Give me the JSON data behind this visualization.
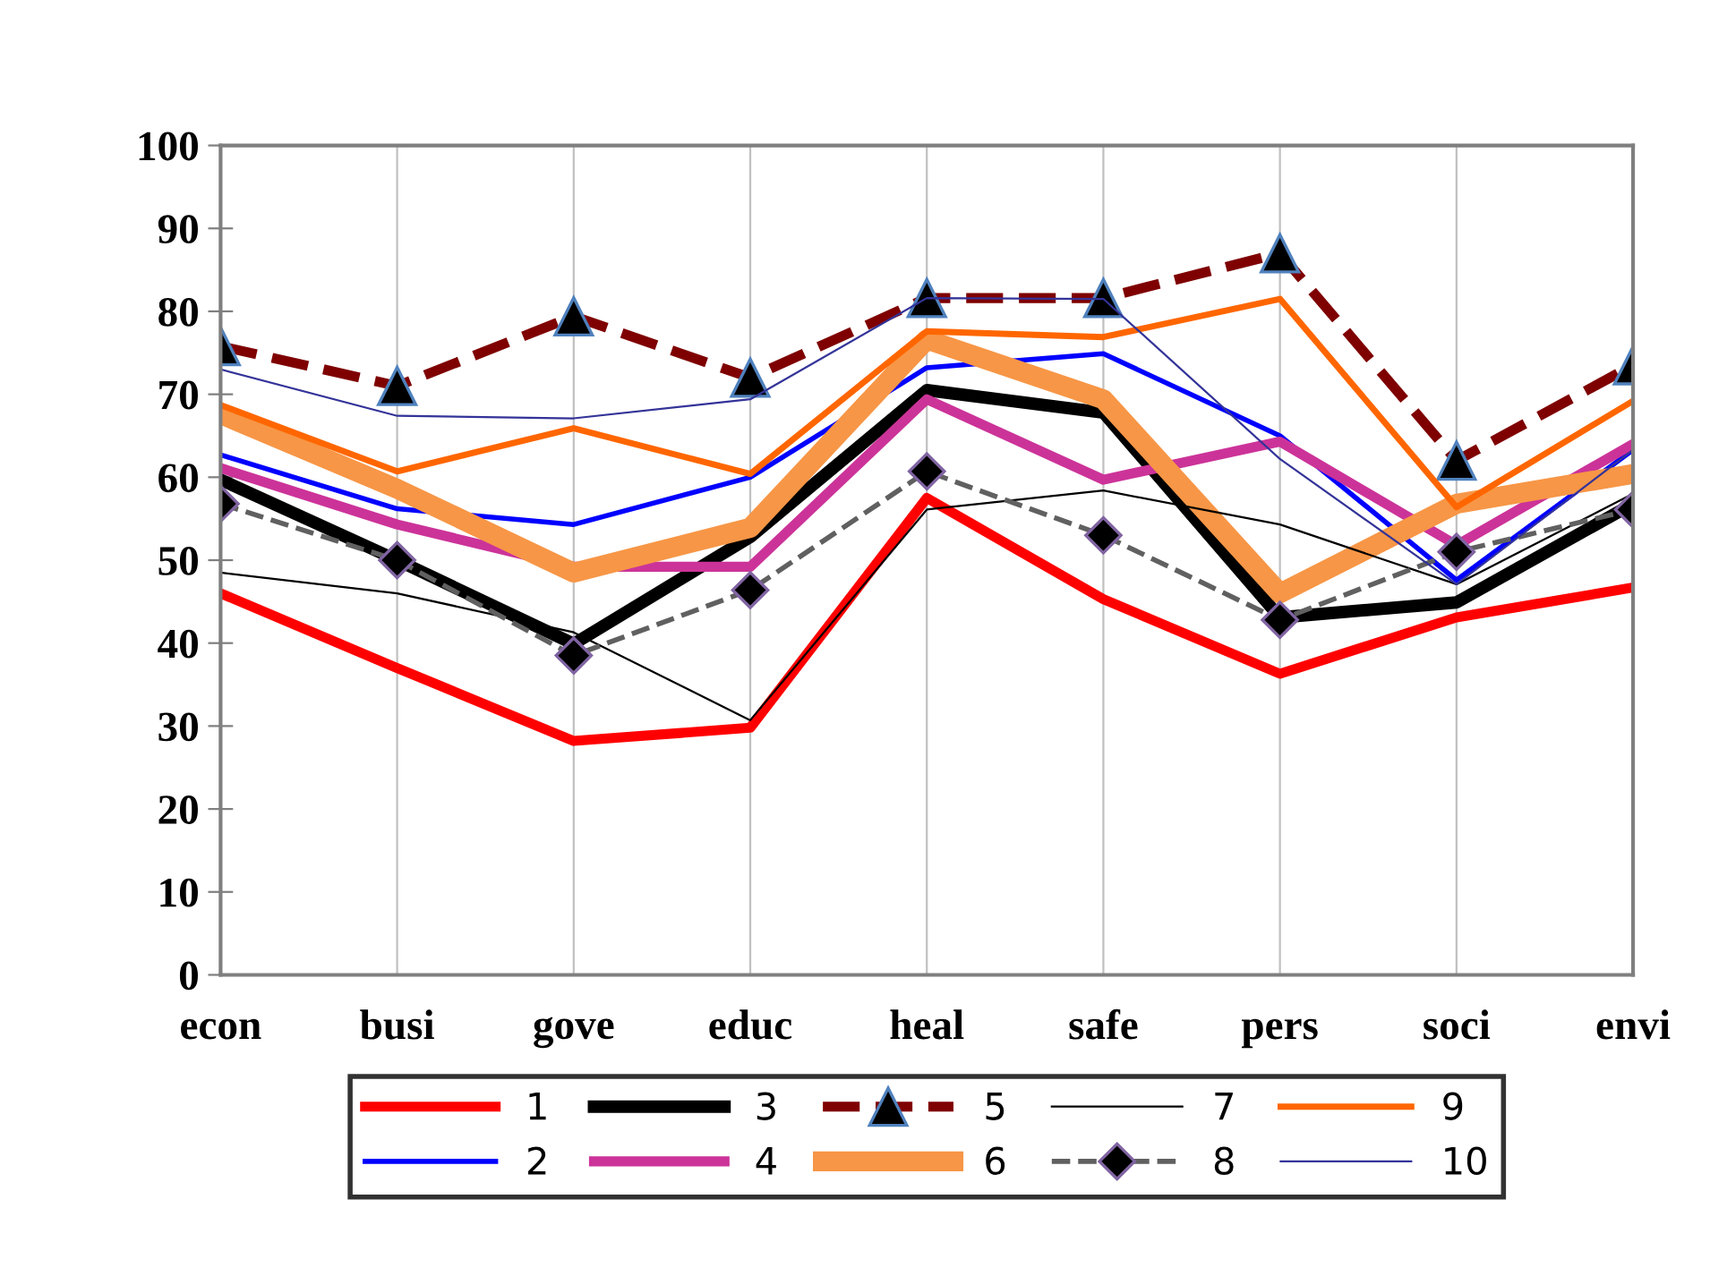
{
  "chart_data": {
    "type": "line",
    "categories": [
      "econ",
      "busi",
      "gove",
      "educ",
      "heal",
      "safe",
      "pers",
      "soci",
      "envi"
    ],
    "ylim": [
      0,
      100
    ],
    "yticks": [
      0,
      10,
      20,
      30,
      40,
      50,
      60,
      70,
      80,
      90,
      100
    ],
    "grid": "x",
    "legend": "bottom",
    "marker": "none",
    "line_style": "solid",
    "series": [
      {
        "name": "1",
        "color": "#ff0000",
        "values": [
          46,
          37,
          28.2,
          29.8,
          57.5,
          45.3,
          36.3,
          43.1,
          46.7
        ]
      },
      {
        "name": "2",
        "color": "#0000ff",
        "values": [
          62.7,
          56.2,
          54.3,
          60,
          73.2,
          74.9,
          65,
          47.6,
          63.3
        ]
      },
      {
        "name": "3",
        "color": "#000000",
        "values": [
          59.7,
          50,
          39.9,
          52.8,
          70.5,
          67.8,
          43.1,
          44.9,
          56.8
        ]
      },
      {
        "name": "4",
        "color": "#cc3399",
        "values": [
          61.1,
          54.3,
          49.2,
          49.2,
          69.4,
          59.7,
          64.3,
          51.8,
          64
        ]
      },
      {
        "name": "5",
        "color": "#7f0000",
        "marker": "triangle",
        "line_style": "dashed",
        "values": [
          75.8,
          71,
          79.4,
          72,
          81.6,
          81.6,
          87,
          62,
          73.5
        ]
      },
      {
        "name": "6",
        "color": "#f79646",
        "values": [
          67.6,
          58.6,
          48.5,
          53.9,
          76.6,
          69.4,
          46,
          56.8,
          60.4
        ]
      },
      {
        "name": "7",
        "color": "#000000",
        "values": [
          48.5,
          46,
          41.3,
          30.7,
          56.1,
          58.4,
          54.3,
          47.1,
          58
        ]
      },
      {
        "name": "8",
        "color": "#606060",
        "marker": "diamond",
        "line_style": "dashed",
        "values": [
          56.8,
          50,
          38.5,
          46.4,
          60.7,
          53,
          42.8,
          51,
          56.1
        ]
      },
      {
        "name": "9",
        "color": "#ff6600",
        "values": [
          68.7,
          60.7,
          65.9,
          60.4,
          77.6,
          76.9,
          81.5,
          56.4,
          69.2
        ]
      },
      {
        "name": "10",
        "color": "#333399",
        "values": [
          73,
          67.4,
          67.1,
          69.4,
          81.6,
          81.5,
          62.2,
          47.1,
          63.3
        ]
      }
    ]
  }
}
